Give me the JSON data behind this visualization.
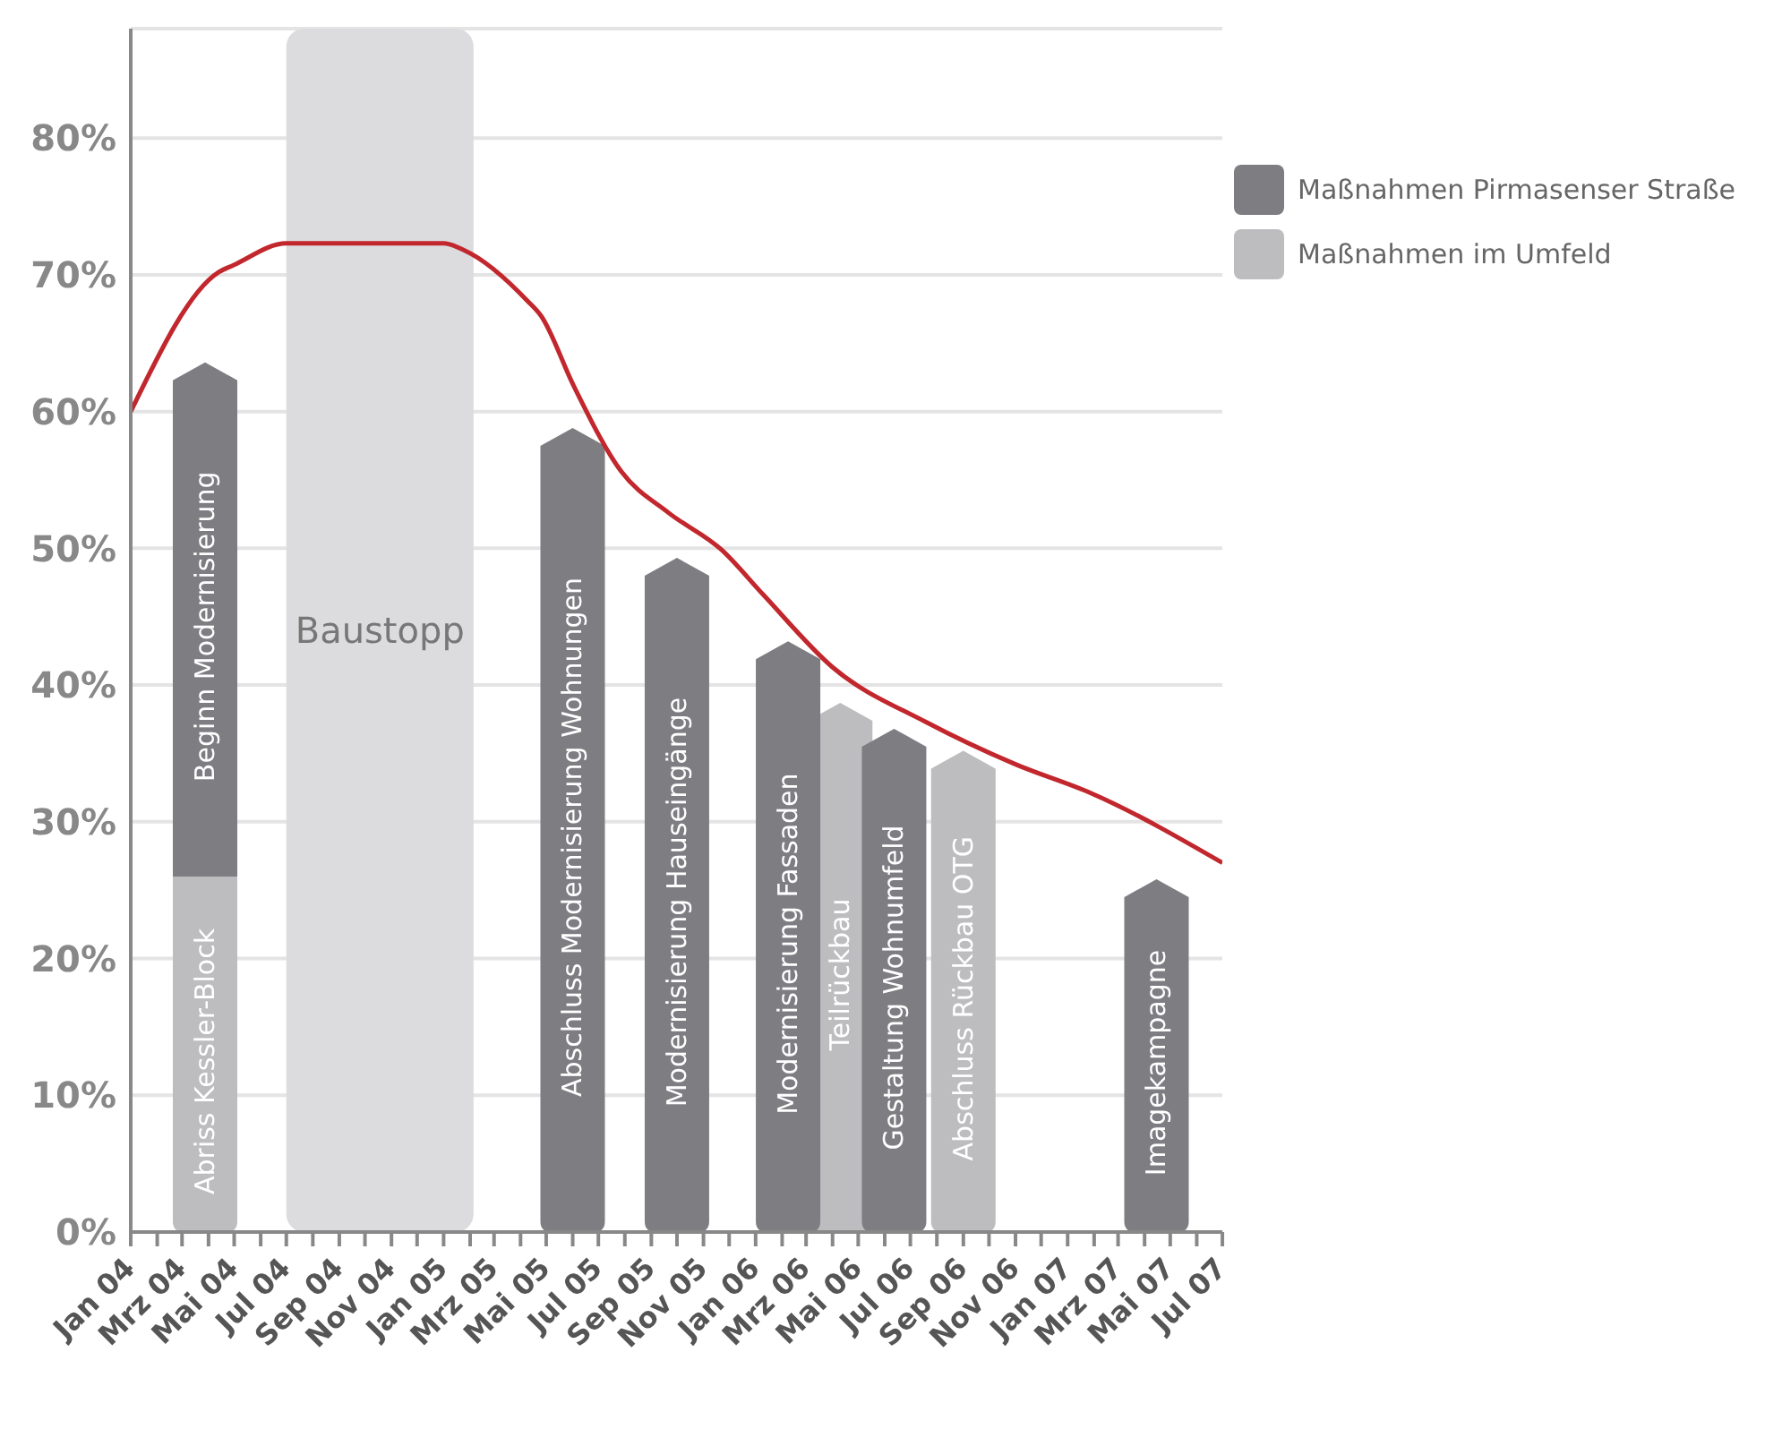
{
  "chart_data": {
    "type": "bar",
    "stacked": true,
    "legend": "top right",
    "grid": "y",
    "marker": "none",
    "line_style": "solid",
    "xlim": [
      "2004-01-01",
      "2007-07-01"
    ],
    "xticks": [
      {
        "value": "2004-01-01",
        "label": "Jan 04"
      },
      {
        "value": "2004-02-01",
        "label": null
      },
      {
        "value": "2004-03-01",
        "label": "Mrz 04"
      },
      {
        "value": "2004-04-01",
        "label": null
      },
      {
        "value": "2004-05-01",
        "label": "Mai 04"
      },
      {
        "value": "2004-06-01",
        "label": null
      },
      {
        "value": "2004-07-01",
        "label": "Jul 04"
      },
      {
        "value": "2004-08-01",
        "label": null
      },
      {
        "value": "2004-09-01",
        "label": "Sep 04"
      },
      {
        "value": "2004-10-01",
        "label": null
      },
      {
        "value": "2004-11-01",
        "label": "Nov 04"
      },
      {
        "value": "2004-12-01",
        "label": null
      },
      {
        "value": "2005-01-01",
        "label": "Jan 05"
      },
      {
        "value": "2005-02-01",
        "label": null
      },
      {
        "value": "2005-03-01",
        "label": "Mrz 05"
      },
      {
        "value": "2005-04-01",
        "label": null
      },
      {
        "value": "2005-05-01",
        "label": "Mai 05"
      },
      {
        "value": "2005-06-01",
        "label": null
      },
      {
        "value": "2005-07-01",
        "label": "Jul 05"
      },
      {
        "value": "2005-08-01",
        "label": null
      },
      {
        "value": "2005-09-01",
        "label": "Sep 05"
      },
      {
        "value": "2005-10-01",
        "label": null
      },
      {
        "value": "2005-11-01",
        "label": "Nov 05"
      },
      {
        "value": "2005-12-01",
        "label": null
      },
      {
        "value": "2006-01-01",
        "label": "Jan 06"
      },
      {
        "value": "2006-02-01",
        "label": null
      },
      {
        "value": "2006-03-01",
        "label": "Mrz 06"
      },
      {
        "value": "2006-04-01",
        "label": null
      },
      {
        "value": "2006-05-01",
        "label": "Mai 06"
      },
      {
        "value": "2006-06-01",
        "label": null
      },
      {
        "value": "2006-07-01",
        "label": "Jul 06"
      },
      {
        "value": "2006-08-01",
        "label": null
      },
      {
        "value": "2006-09-01",
        "label": "Sep 06"
      },
      {
        "value": "2006-10-01",
        "label": null
      },
      {
        "value": "2006-11-01",
        "label": "Nov 06"
      },
      {
        "value": "2006-12-01",
        "label": null
      },
      {
        "value": "2007-01-01",
        "label": "Jan 07"
      },
      {
        "value": "2007-02-01",
        "label": null
      },
      {
        "value": "2007-03-01",
        "label": "Mrz 07"
      },
      {
        "value": "2007-04-01",
        "label": null
      },
      {
        "value": "2007-05-01",
        "label": "Mai 07"
      },
      {
        "value": "2007-06-01",
        "label": null
      },
      {
        "value": "2007-07-01",
        "label": "Jul 07"
      }
    ],
    "ylim": [
      0,
      88
    ],
    "yticks": [
      {
        "value": 0,
        "label": "0%"
      },
      {
        "value": 10,
        "label": "10%"
      },
      {
        "value": 20,
        "label": "20%"
      },
      {
        "value": 30,
        "label": "30%"
      },
      {
        "value": 40,
        "label": "40%"
      },
      {
        "value": 50,
        "label": "50%"
      },
      {
        "value": 60,
        "label": "60%"
      },
      {
        "value": 70,
        "label": "70%"
      },
      {
        "value": 80,
        "label": "80%"
      }
    ],
    "x": [
      "2004-03-28",
      "2005-06-01",
      "2005-10-01",
      "2006-02-08",
      "2006-04-10",
      "2006-06-12",
      "2006-09-01",
      "2007-04-15"
    ],
    "series": [
      {
        "name": "Maßnahmen im Umfeld",
        "color": "#bdbdc0",
        "values": [
          26,
          null,
          null,
          null,
          38.7,
          null,
          35.2,
          null
        ],
        "value_labels": [
          "Abriss Kessler-Block",
          null,
          null,
          null,
          "Teilrückbau",
          null,
          "Abschluss Rückbau OTG",
          null
        ]
      },
      {
        "name": "Maßnahmen Pirmasenser Straße",
        "color": "#7d7d82",
        "values": [
          37.6,
          58.8,
          49.3,
          43.2,
          null,
          36.8,
          null,
          25.8
        ],
        "value_labels": [
          "Beginn Modernisierung",
          "Abschluss Modernisierung Wohnungen",
          "Modernisierung Hauseingänge",
          "Modernisierung Fassaden",
          null,
          "Gestaltung Wohnumfeld",
          null,
          "Imagekampagne"
        ]
      },
      {
        "type": "line",
        "color": "#c1272d",
        "x": [
          "2004-01-01",
          "2004-04-13",
          "2004-04-30",
          "2004-07-01",
          "2005-01-01",
          "2005-01-25",
          "2005-04-09",
          "2005-04-25",
          "2005-06-02",
          "2005-07-28",
          "2005-09-21",
          "2005-11-22",
          "2006-01-10",
          "2006-04-01",
          "2006-07-19",
          "2006-11-01",
          "2007-01-28",
          "2007-07-01"
        ],
        "values": [
          60,
          70.2,
          70.7,
          72.3,
          72.3,
          71.8,
          68.1,
          67,
          61.9,
          55.6,
          52.6,
          49.9,
          46.6,
          41.3,
          37.3,
          34.2,
          32.1,
          27
        ]
      }
    ],
    "bands": [
      {
        "axis": "x",
        "from": "2004-07-01",
        "to": "2005-02-05",
        "label": "Baustopp",
        "color": "#dcdcde"
      }
    ]
  }
}
